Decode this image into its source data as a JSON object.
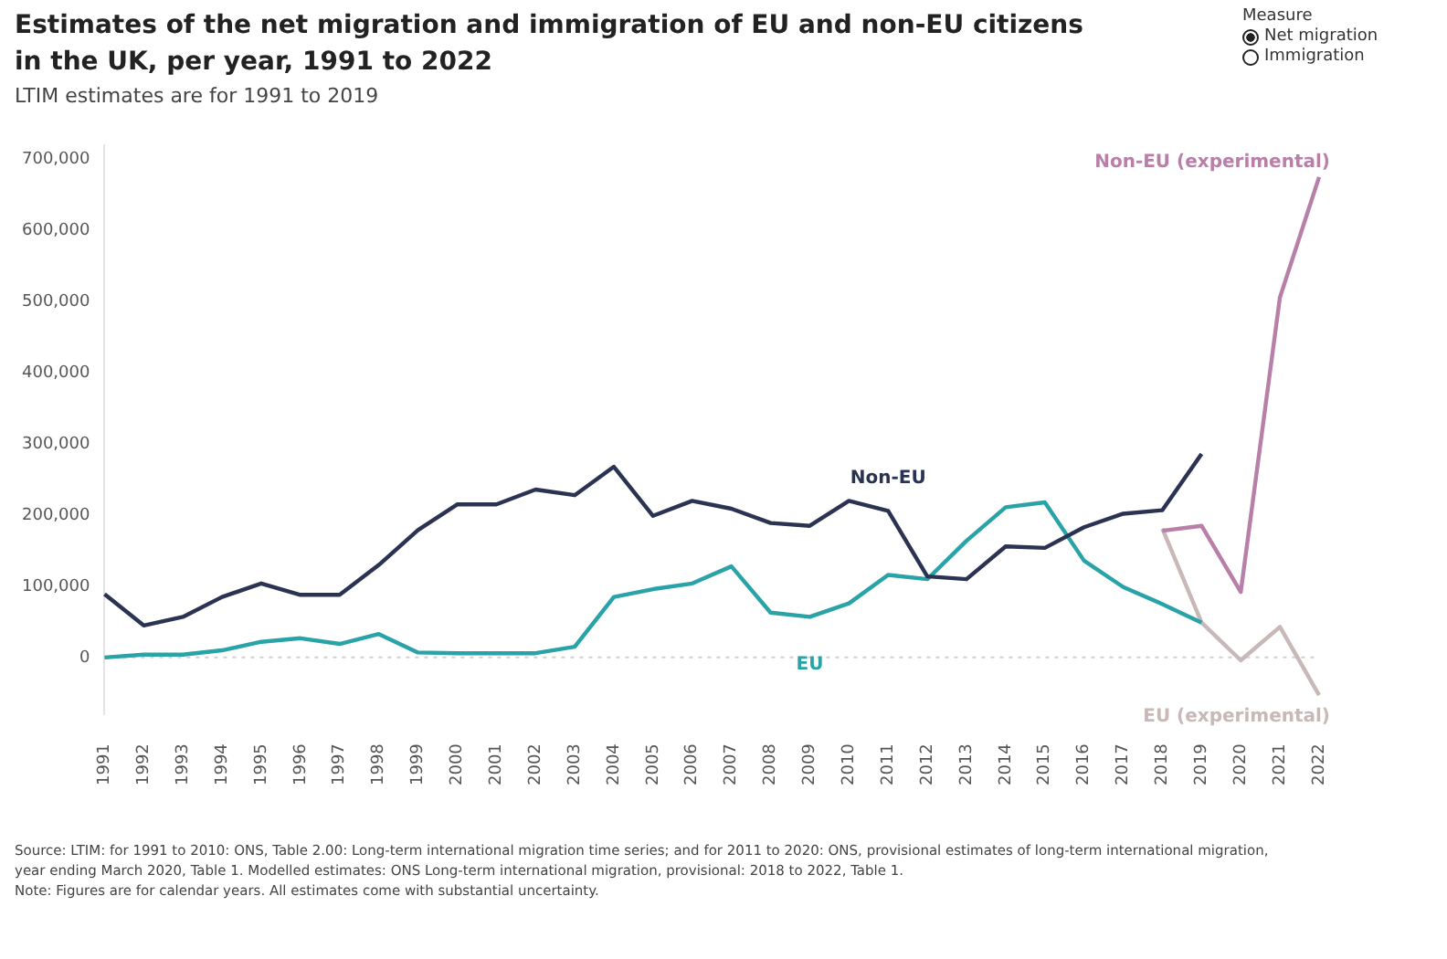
{
  "chart_data": {
    "type": "line",
    "title": "Estimates of the net migration and immigration of EU and non-EU citizens in the UK, per year, 1991 to 2022",
    "subtitle": "LTIM estimates are for 1991 to 2019",
    "legend_title": "Measure",
    "annotations": [
      "Net migration",
      "Immigration",
      "Source: LTIM: for 1991 to 2010: ONS, Table 2.00: Long-term international migration time series; and for 2011 to 2020: ONS, provisional estimates of long-term international migration, year ending March 2020, Table 1. Modelled estimates: ONS Long-term international migration, provisional: 2018 to 2022, Table 1.",
      "Note: Figures are for calendar years. All estimates come with substantial uncertainty."
    ],
    "categories": [
      "1991",
      "1992",
      "1993",
      "1994",
      "1995",
      "1996",
      "1997",
      "1998",
      "1999",
      "2000",
      "2001",
      "2002",
      "2003",
      "2004",
      "2005",
      "2006",
      "2007",
      "2008",
      "2009",
      "2010",
      "2011",
      "2012",
      "2013",
      "2014",
      "2015",
      "2016",
      "2017",
      "2018",
      "2019",
      "2020",
      "2021",
      "2022"
    ],
    "series": [
      {
        "name": "Non-EU",
        "color": "#2b3352",
        "values": [
          89000,
          45000,
          57000,
          85000,
          104000,
          88000,
          88000,
          130000,
          179000,
          215000,
          215000,
          236000,
          228000,
          268000,
          199000,
          220000,
          209000,
          189000,
          185000,
          220000,
          206000,
          114000,
          110000,
          156000,
          154000,
          183000,
          202000,
          207000,
          286000,
          null,
          null,
          null
        ]
      },
      {
        "name": "EU",
        "color": "#2aa3a8",
        "values": [
          0,
          4000,
          4000,
          10000,
          22000,
          27000,
          19000,
          33000,
          7000,
          6000,
          6000,
          6000,
          15000,
          85000,
          96000,
          104000,
          128000,
          63000,
          57000,
          76000,
          116000,
          110000,
          164000,
          211000,
          218000,
          136000,
          99000,
          75000,
          49000,
          null,
          null,
          null
        ]
      },
      {
        "name": "Non-EU (experimental)",
        "color": "#b87fa8",
        "values": [
          null,
          null,
          null,
          null,
          null,
          null,
          null,
          null,
          null,
          null,
          null,
          null,
          null,
          null,
          null,
          null,
          null,
          null,
          null,
          null,
          null,
          null,
          null,
          null,
          null,
          null,
          null,
          178000,
          185000,
          92000,
          506000,
          675000
        ]
      },
      {
        "name": "EU (experimental)",
        "color": "#c8b8b8",
        "values": [
          null,
          null,
          null,
          null,
          null,
          null,
          null,
          null,
          null,
          null,
          null,
          null,
          null,
          null,
          null,
          null,
          null,
          null,
          null,
          null,
          null,
          null,
          null,
          null,
          null,
          null,
          null,
          181000,
          49000,
          -4000,
          43000,
          -53000
        ]
      }
    ],
    "ylim": [
      -80000,
      720000
    ],
    "yticks": [
      {
        "value": 0,
        "label": "0"
      },
      {
        "value": 100000,
        "label": "100,000"
      },
      {
        "value": 200000,
        "label": "200,000"
      },
      {
        "value": 300000,
        "label": "300,000"
      },
      {
        "value": 400000,
        "label": "400,000"
      },
      {
        "value": 500000,
        "label": "500,000"
      },
      {
        "value": 600000,
        "label": "600,000"
      },
      {
        "value": 700000,
        "label": "700,000"
      }
    ],
    "ref_lines": [
      {
        "axis": "y",
        "value": 0,
        "color": "#d0d0d0",
        "line_style": "dotted"
      }
    ],
    "grid": false,
    "legend": false,
    "marker": "none",
    "line_style": "solid"
  }
}
